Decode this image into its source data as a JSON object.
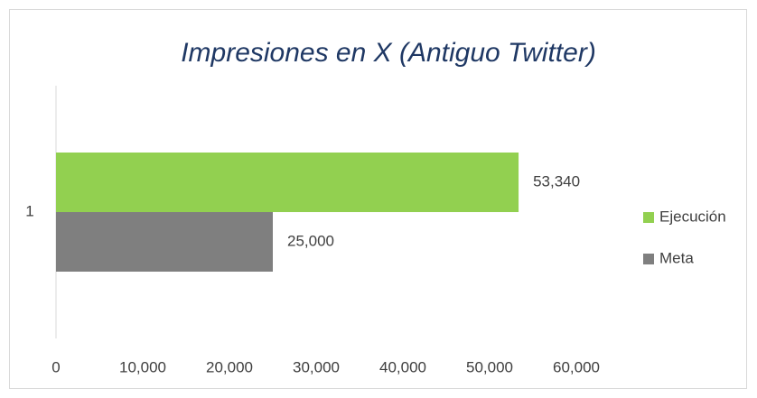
{
  "chart_data": {
    "type": "barh",
    "title": "Impresiones en X (Antiguo Twitter)",
    "categories": [
      "1"
    ],
    "series": [
      {
        "name": "Ejecución",
        "color": "#92d050",
        "values": [
          53340
        ],
        "value_labels": [
          "53,340"
        ]
      },
      {
        "name": "Meta",
        "color": "#7f7f7f",
        "values": [
          25000
        ],
        "value_labels": [
          "25,000"
        ]
      }
    ],
    "xlim": [
      0,
      60000
    ],
    "xticks": [
      0,
      {
        "value": 10000,
        "label": "10,000"
      },
      {
        "value": 20000,
        "label": "20,000"
      },
      {
        "value": 30000,
        "label": "30,000"
      },
      {
        "value": 40000,
        "label": "40,000"
      },
      {
        "value": 50000,
        "label": "50,000"
      },
      {
        "value": 60000,
        "label": "60,000"
      }
    ],
    "grid": false,
    "legend": "right"
  }
}
